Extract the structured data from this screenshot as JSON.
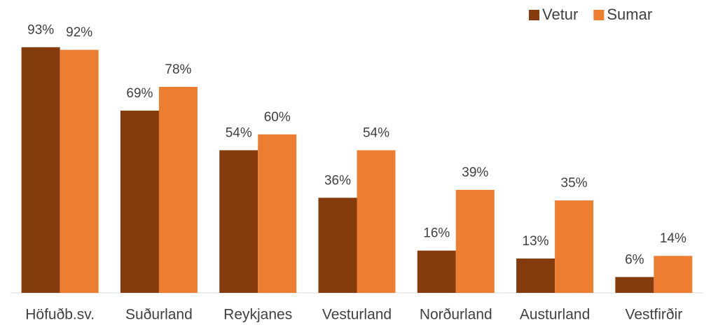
{
  "chart_data": {
    "type": "bar",
    "categories": [
      "Höfuðb.sv.",
      "Suðurland",
      "Reykjanes",
      "Vesturland",
      "Norðurland",
      "Austurland",
      "Vestfirðir"
    ],
    "series": [
      {
        "name": "Vetur",
        "color": "#843c0c",
        "values": [
          93,
          69,
          54,
          36,
          16,
          13,
          6
        ],
        "value_labels": [
          "93%",
          "69%",
          "54%",
          "36%",
          "16%",
          "13%",
          "6%"
        ]
      },
      {
        "name": "Sumar",
        "color": "#ed7d31",
        "values": [
          92,
          78,
          60,
          54,
          39,
          35,
          14
        ],
        "value_labels": [
          "92%",
          "78%",
          "60%",
          "54%",
          "39%",
          "35%",
          "14%"
        ]
      }
    ],
    "ylim": [
      0,
      100
    ],
    "legend": "top-right"
  }
}
